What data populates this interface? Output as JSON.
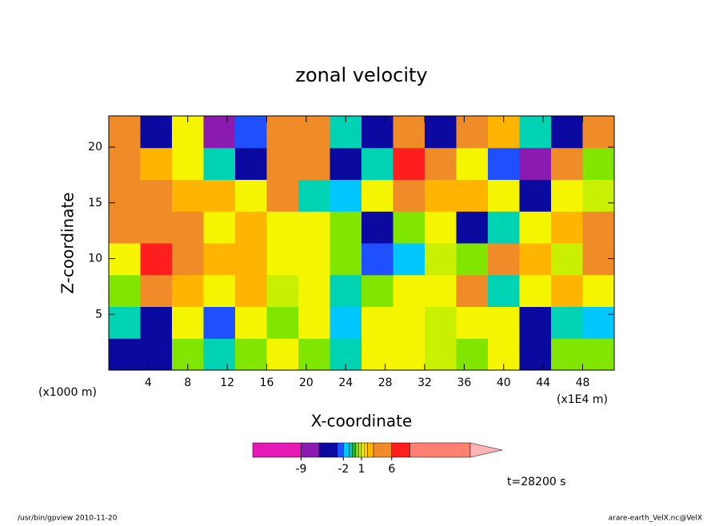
{
  "chart_data": {
    "type": "contour",
    "title": "zonal velocity",
    "x_label": "X-coordinate",
    "y_label": "Z-coordinate",
    "x_unit": "(x1000 m)",
    "x_unit_right": "(x1E4 m)",
    "time_label": "t=28200 s",
    "footer_left": "/usr/bin/gpview  2010-11-20",
    "footer_right": "arare-earth_VelX.nc@VelX",
    "xlim": [
      0,
      51.2
    ],
    "xticks": [
      4,
      8,
      12,
      16,
      20,
      24,
      28,
      32,
      36,
      40,
      44,
      48
    ],
    "ylim": [
      0,
      22.8
    ],
    "yticks": [
      5,
      10,
      15,
      20
    ],
    "x": [
      1.6,
      4.8,
      8.0,
      11.2,
      14.4,
      17.6,
      20.8,
      24.0,
      27.2,
      30.4,
      33.6,
      36.8,
      40.0,
      43.2,
      46.4,
      49.6
    ],
    "y": [
      1.4,
      4.3,
      7.1,
      10.0,
      12.8,
      15.7,
      18.5,
      21.4
    ],
    "z": [
      [
        -4,
        -4,
        0,
        -1,
        0,
        1,
        0,
        -1,
        1,
        1,
        0.5,
        0,
        1,
        -6,
        0,
        0
      ],
      [
        -1,
        -5,
        1,
        -3,
        1,
        0,
        1,
        -2,
        1,
        1,
        0.5,
        1,
        1,
        -4,
        -1,
        -2
      ],
      [
        0,
        5,
        2,
        1,
        2,
        0.5,
        1,
        -1,
        0,
        1,
        1,
        3,
        -1,
        1,
        2,
        1
      ],
      [
        1,
        6,
        3,
        2,
        2,
        1,
        1,
        0,
        -3,
        -2,
        0.5,
        0,
        3,
        2,
        0.5,
        3
      ],
      [
        4,
        4,
        4,
        1,
        2,
        1,
        1,
        0,
        -4,
        0,
        1,
        -4,
        -1,
        1,
        2,
        3
      ],
      [
        4,
        3,
        2,
        2,
        1,
        3,
        -1,
        -2,
        1,
        5,
        2,
        2,
        1,
        -5,
        1,
        0.5
      ],
      [
        3,
        2,
        1,
        -1,
        -4,
        5,
        3,
        -5,
        -1,
        7,
        4,
        1,
        -3,
        -7,
        4,
        0
      ],
      [
        4,
        -4,
        1,
        -7,
        -3,
        4,
        4,
        -1,
        -4,
        3,
        -5,
        5,
        2,
        -1,
        -5,
        3
      ]
    ],
    "levels": [
      -17,
      -9,
      -6,
      -3,
      -2,
      -1,
      -0.5,
      0,
      0.5,
      1,
      1.5,
      2,
      3,
      6,
      9,
      19
    ],
    "colors": [
      "#e619b4",
      "#8a1ab0",
      "#0a0aa0",
      "#1e50ff",
      "#00c8ff",
      "#00d2b4",
      "#00d200",
      "#80e600",
      "#c8f000",
      "#f5f500",
      "#ffd200",
      "#ffb400",
      "#f08c28",
      "#ff1e1e",
      "#ff8070"
    ],
    "extend_color": "#ffb4b4",
    "colorbar_ticks": [
      -9,
      -2,
      1,
      6
    ]
  }
}
